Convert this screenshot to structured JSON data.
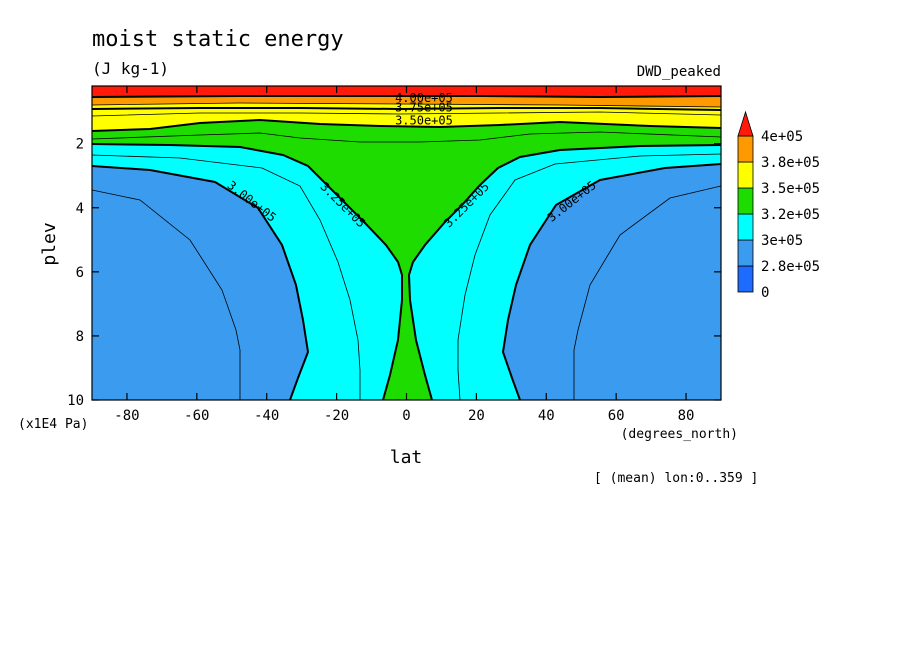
{
  "chart_data": {
    "type": "contour",
    "title": "moist static energy",
    "units": "(J kg-1)",
    "dataset_label": "DWD_peaked",
    "xlabel": "lat",
    "xunits": "(degrees_north)",
    "ylabel": "plev",
    "yunits": "(x1E4 Pa)",
    "mean_note": "[ (mean) lon:0..359 ]",
    "xlim": [
      -90,
      90
    ],
    "ylim": [
      10,
      0.2
    ],
    "x_ticks": [
      -80,
      -60,
      -40,
      -20,
      0,
      20,
      40,
      60,
      80
    ],
    "y_ticks": [
      2,
      4,
      6,
      8,
      10
    ],
    "colorbar": {
      "labels": [
        "0",
        "2.8e+05",
        "3e+05",
        "3.2e+05",
        "3.5e+05",
        "3.8e+05",
        "4e+05"
      ],
      "colors": [
        "#1e6cff",
        "#3b9bef",
        "#00ffff",
        "#1fdc00",
        "#ffff00",
        "#ff9900",
        "#ff1a0a"
      ]
    },
    "contour_labels": [
      {
        "text": "4.00e+05",
        "lat": 5,
        "plev": 0.7
      },
      {
        "text": "3.75e+05",
        "lat": 5,
        "plev": 1.0
      },
      {
        "text": "3.50e+05",
        "lat": 5,
        "plev": 1.4
      },
      {
        "text": "3.25e+05",
        "lat": -19,
        "plev": 4.0
      },
      {
        "text": "3.25e+05",
        "lat": 18,
        "plev": 4.0
      },
      {
        "text": "3.00e+05",
        "lat": -45,
        "plev": 3.9
      },
      {
        "text": "3.00e+05",
        "lat": 48,
        "plev": 3.9
      }
    ]
  }
}
